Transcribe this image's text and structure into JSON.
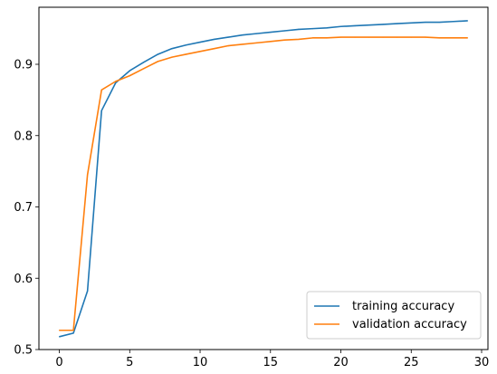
{
  "chart_data": {
    "type": "line",
    "title": "",
    "xlabel": "",
    "ylabel": "",
    "xlim": [
      -1.45,
      30.45
    ],
    "ylim": [
      0.5,
      0.98
    ],
    "grid": false,
    "legend_position": "lower-right",
    "xticks": [
      0,
      5,
      10,
      15,
      20,
      25,
      30
    ],
    "yticks": [
      0.5,
      0.6,
      0.7,
      0.8,
      0.9
    ],
    "x": [
      0,
      1,
      2,
      3,
      4,
      5,
      6,
      7,
      8,
      9,
      10,
      11,
      12,
      13,
      14,
      15,
      16,
      17,
      18,
      19,
      20,
      21,
      22,
      23,
      24,
      25,
      26,
      27,
      28,
      29
    ],
    "series": [
      {
        "name": "training accuracy",
        "color": "#1f77b4",
        "values": [
          0.518,
          0.523,
          0.582,
          0.835,
          0.874,
          0.891,
          0.903,
          0.914,
          0.922,
          0.927,
          0.931,
          0.935,
          0.938,
          0.941,
          0.943,
          0.945,
          0.947,
          0.949,
          0.95,
          0.951,
          0.953,
          0.954,
          0.955,
          0.956,
          0.957,
          0.958,
          0.959,
          0.959,
          0.96,
          0.961
        ]
      },
      {
        "name": "validation accuracy",
        "color": "#ff7f0e",
        "values": [
          0.527,
          0.527,
          0.745,
          0.864,
          0.876,
          0.884,
          0.894,
          0.904,
          0.91,
          0.914,
          0.918,
          0.922,
          0.926,
          0.928,
          0.93,
          0.932,
          0.934,
          0.935,
          0.937,
          0.937,
          0.938,
          0.938,
          0.938,
          0.938,
          0.938,
          0.938,
          0.938,
          0.937,
          0.937,
          0.937
        ]
      }
    ]
  }
}
